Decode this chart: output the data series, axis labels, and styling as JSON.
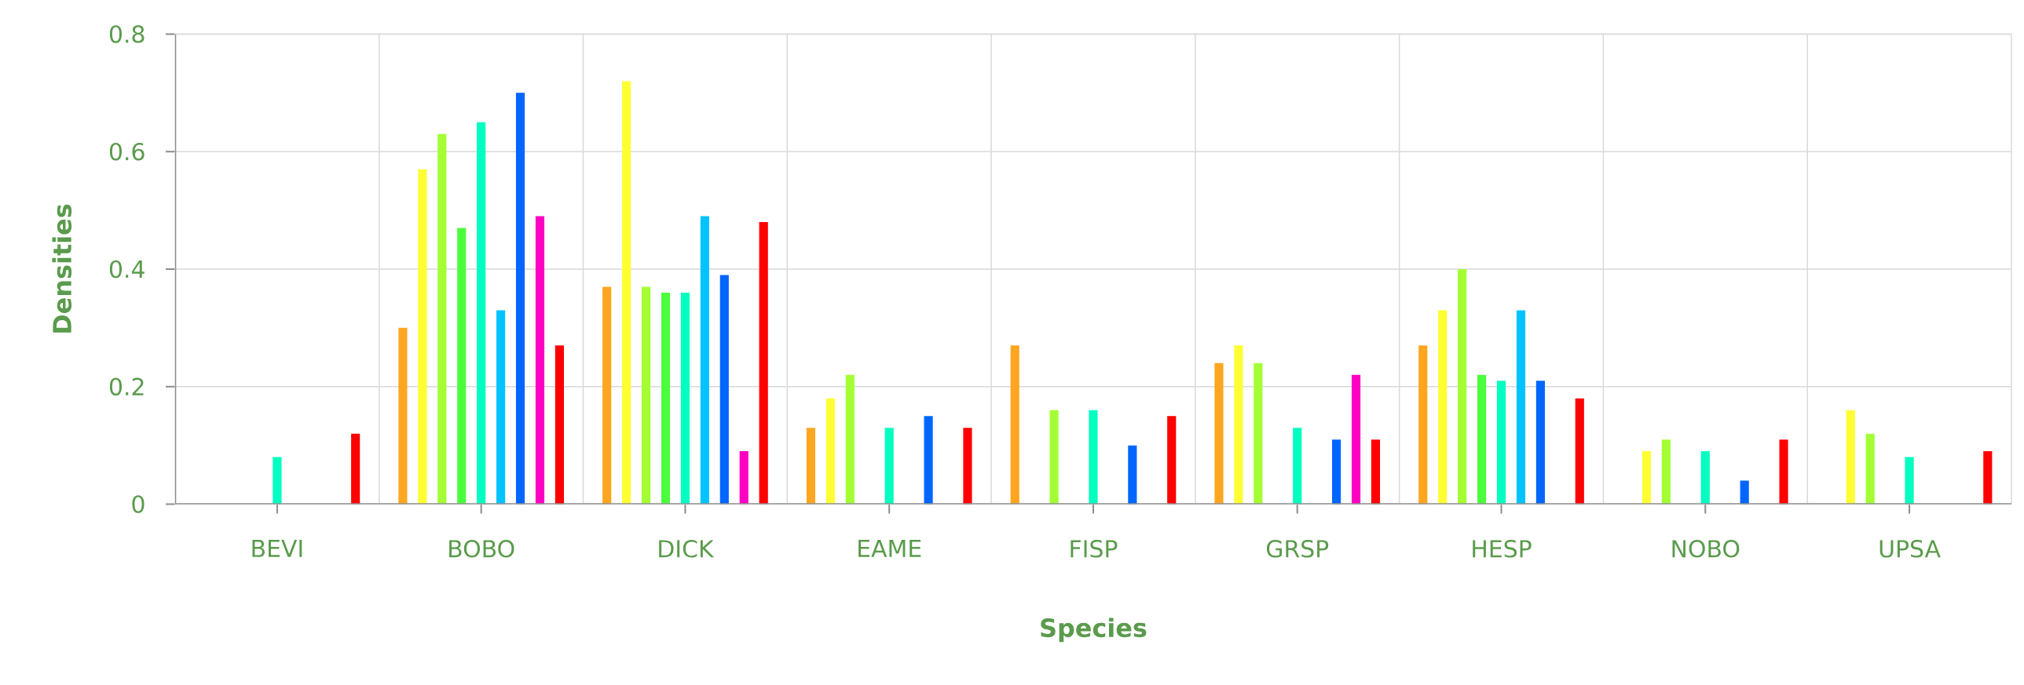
{
  "chart_data": {
    "type": "bar",
    "xlabel": "Species",
    "ylabel": "Densities",
    "categories": [
      "BEVI",
      "BOBO",
      "DICK",
      "EAME",
      "FISP",
      "GRSP",
      "HESP",
      "NOBO",
      "UPSA"
    ],
    "series": [
      {
        "color": "#ffa620",
        "values": [
          null,
          0.3,
          0.37,
          0.13,
          0.27,
          0.24,
          0.27,
          null,
          null
        ]
      },
      {
        "color": "#ffff33",
        "values": [
          null,
          0.57,
          0.72,
          0.18,
          null,
          0.27,
          0.33,
          0.09,
          0.16
        ]
      },
      {
        "color": "#a3ff33",
        "values": [
          null,
          0.63,
          0.37,
          0.22,
          0.16,
          0.24,
          0.4,
          0.11,
          0.12
        ]
      },
      {
        "color": "#4cff3c",
        "values": [
          null,
          0.47,
          0.36,
          null,
          null,
          null,
          0.22,
          null,
          null
        ]
      },
      {
        "color": "#00ffc0",
        "values": [
          0.08,
          0.65,
          0.36,
          0.13,
          0.16,
          0.13,
          0.21,
          0.09,
          0.08
        ]
      },
      {
        "color": "#00c3ff",
        "values": [
          null,
          0.33,
          0.49,
          null,
          null,
          null,
          0.33,
          null,
          null
        ]
      },
      {
        "color": "#0066ff",
        "values": [
          null,
          0.7,
          0.39,
          0.15,
          0.1,
          0.11,
          0.21,
          0.04,
          null
        ]
      },
      {
        "color": "#ff00c3",
        "values": [
          null,
          0.49,
          0.09,
          null,
          null,
          0.22,
          null,
          null,
          null
        ]
      },
      {
        "color": "#ff0000",
        "values": [
          0.12,
          0.27,
          0.48,
          0.13,
          0.15,
          0.11,
          0.18,
          0.11,
          0.09
        ]
      }
    ],
    "ylim": [
      0,
      0.8
    ],
    "yticks": [
      0,
      0.2,
      0.4,
      0.6,
      0.8
    ],
    "grid": true
  }
}
